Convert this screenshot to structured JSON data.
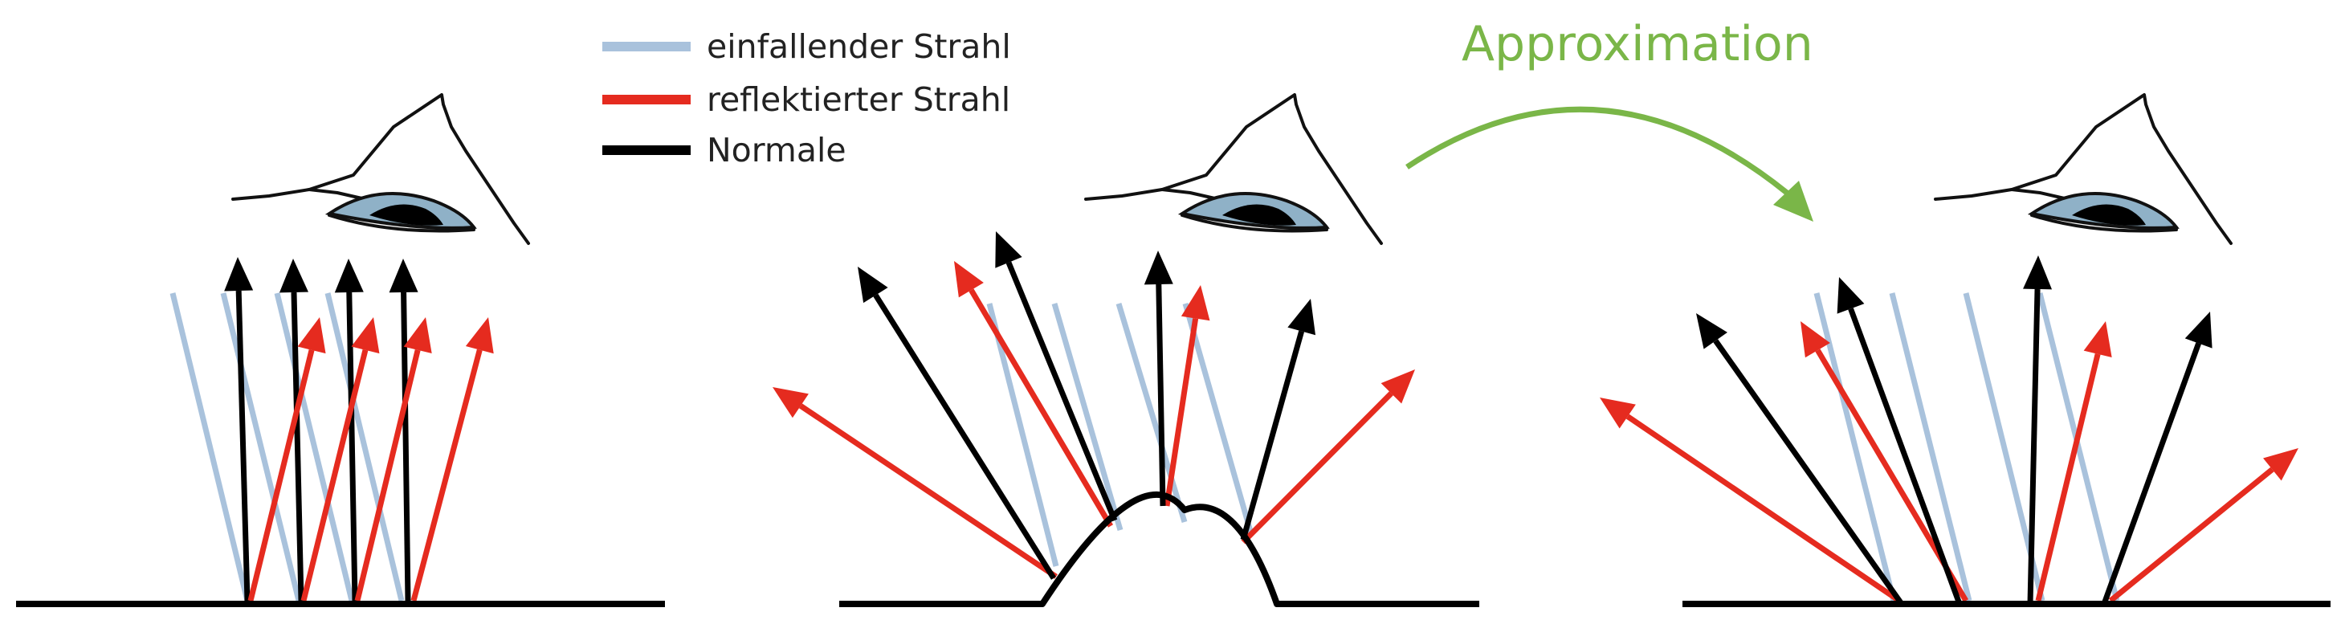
{
  "legend": {
    "items": [
      {
        "label": "einfallender Strahl",
        "color": "#a9c2dc"
      },
      {
        "label": "reflektierter Strahl",
        "color": "#e52b1f"
      },
      {
        "label": "Normale",
        "color": "#000000"
      }
    ]
  },
  "approximation": {
    "label": "Approximation",
    "color": "#7ab648"
  },
  "colors": {
    "incident": "#a9c2dc",
    "reflected": "#e52b1f",
    "normal": "#000000",
    "surface": "#000000",
    "eye_iris": "#8fb1c7",
    "eye_pupil": "#000000"
  },
  "panels": [
    {
      "name": "flat-surface"
    },
    {
      "name": "bumped-surface"
    },
    {
      "name": "approximated-surface"
    }
  ]
}
